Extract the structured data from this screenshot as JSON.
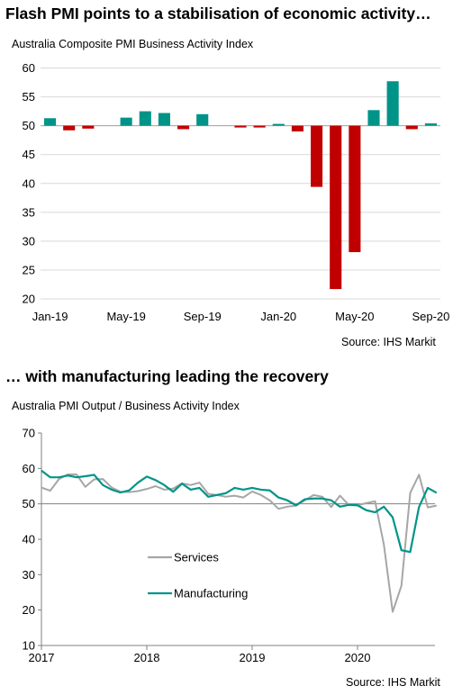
{
  "chart_data": [
    {
      "type": "bar",
      "heading": "Flash PMI points to a stabilisation of economic activity…",
      "title": "Australia Composite PMI Business Activity Index",
      "source": "Source: IHS Markit",
      "baseline": 50,
      "ylim": [
        20,
        60
      ],
      "yticks": [
        20,
        25,
        30,
        35,
        40,
        45,
        50,
        55,
        60
      ],
      "xtick_labels": [
        {
          "label": "Jan-19",
          "index": 0
        },
        {
          "label": "May-19",
          "index": 4
        },
        {
          "label": "Sep-19",
          "index": 8
        },
        {
          "label": "Jan-20",
          "index": 12
        },
        {
          "label": "May-20",
          "index": 16
        },
        {
          "label": "Sep-20",
          "index": 20
        }
      ],
      "categories": [
        "Jan-19",
        "Feb-19",
        "Mar-19",
        "Apr-19",
        "May-19",
        "Jun-19",
        "Jul-19",
        "Aug-19",
        "Sep-19",
        "Oct-19",
        "Nov-19",
        "Dec-19",
        "Jan-20",
        "Feb-20",
        "Mar-20",
        "Apr-20",
        "May-20",
        "Jun-20",
        "Jul-20",
        "Aug-20",
        "Sep-20"
      ],
      "values": [
        51.3,
        49.2,
        49.5,
        null,
        51.4,
        52.5,
        52.2,
        49.4,
        52.0,
        null,
        49.7,
        49.7,
        50.2,
        49.0,
        39.4,
        21.7,
        28.1,
        52.7,
        57.7,
        49.4,
        50.4
      ],
      "colors": {
        "up": "#009488",
        "down": "#c00000"
      },
      "grid": true
    },
    {
      "type": "line",
      "heading": "… with manufacturing leading the recovery",
      "title": "Australia PMI Output / Business Activity Index",
      "source": "Source: IHS Markit",
      "baseline": 50,
      "ylim": [
        10,
        70
      ],
      "yticks": [
        10,
        20,
        30,
        40,
        50,
        60,
        70
      ],
      "x_start": "2017-01",
      "xtick_labels": [
        {
          "label": "2017",
          "index": 0
        },
        {
          "label": "2018",
          "index": 12
        },
        {
          "label": "2019",
          "index": 24
        },
        {
          "label": "2020",
          "index": 36
        }
      ],
      "grid": false,
      "legend_position": "lower-left",
      "series": [
        {
          "name": "Services",
          "color": "#a6a6a6",
          "values": [
            54.6,
            53.7,
            57.0,
            58.3,
            58.3,
            54.8,
            56.9,
            57.0,
            54.6,
            53.4,
            53.3,
            53.6,
            54.2,
            55.0,
            54.0,
            54.3,
            55.8,
            55.3,
            56.0,
            52.8,
            52.5,
            52.0,
            52.3,
            51.8,
            53.5,
            52.5,
            51.0,
            48.6,
            49.2,
            49.5,
            51.0,
            52.5,
            52.0,
            49.1,
            52.3,
            49.7,
            49.6,
            50.2,
            50.7,
            38.5,
            19.5,
            26.9,
            53.1,
            58.2,
            49.0,
            49.5
          ]
        },
        {
          "name": "Manufacturing",
          "color": "#009488",
          "values": [
            59.4,
            57.5,
            57.5,
            58.0,
            57.5,
            57.8,
            58.2,
            55.3,
            54.0,
            53.2,
            53.8,
            56.0,
            57.7,
            56.7,
            55.3,
            53.4,
            55.7,
            54.0,
            54.5,
            52.0,
            52.5,
            53.0,
            54.5,
            54.0,
            54.5,
            54.0,
            53.8,
            51.8,
            51.0,
            49.6,
            51.3,
            51.5,
            51.5,
            51.0,
            49.2,
            49.7,
            49.6,
            48.2,
            47.6,
            49.2,
            46.2,
            36.9,
            36.4,
            49.1,
            54.5,
            53.1
          ]
        }
      ]
    }
  ]
}
